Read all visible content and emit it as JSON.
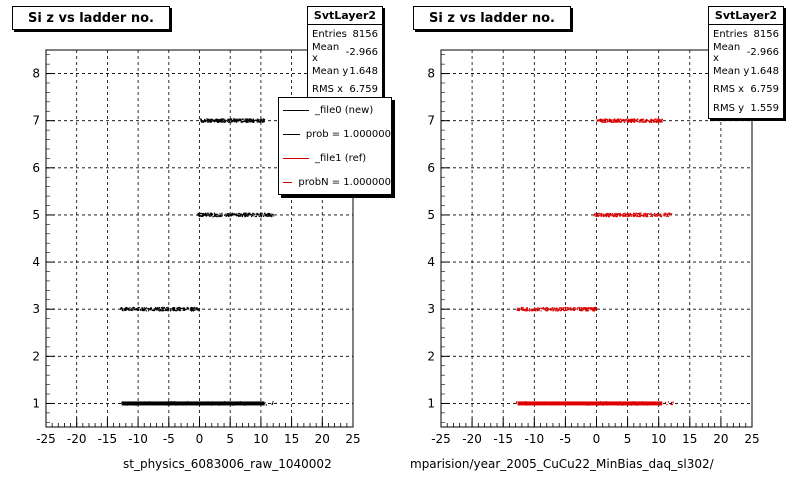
{
  "chart_data": [
    {
      "type": "scatter",
      "title": "Si z vs ladder no.",
      "xlabel": "st_physics_6083006_raw_1040002",
      "ylabel": "",
      "xlim": [
        -25,
        25
      ],
      "ylim": [
        0.5,
        8.5
      ],
      "xticks": [
        -25,
        -20,
        -15,
        -10,
        -5,
        0,
        5,
        10,
        15,
        20,
        25
      ],
      "yticks": [
        1,
        2,
        3,
        4,
        5,
        6,
        7,
        8
      ],
      "grid": true,
      "marker_color": "#000000",
      "series": [
        {
          "ladder": 1,
          "x_range": [
            -13,
            12.5
          ],
          "dense": true
        },
        {
          "ladder": 3,
          "x_range": [
            -13,
            0
          ]
        },
        {
          "ladder": 5,
          "x_range": [
            -0.5,
            12
          ]
        },
        {
          "ladder": 7,
          "x_range": [
            0,
            10.5
          ]
        }
      ],
      "stats": {
        "name": "SvtLayer2",
        "rows": [
          {
            "label": "Entries",
            "value": "8156"
          },
          {
            "label": "Mean x",
            "value": "-2.966"
          },
          {
            "label": "Mean y",
            "value": "1.648"
          },
          {
            "label": "RMS x",
            "value": "6.759"
          }
        ]
      },
      "legend": [
        {
          "label": "_file0 (new)",
          "color": "#000000"
        },
        {
          "label": "prob = 1.000000",
          "color": "#000000"
        },
        {
          "label": "_file1 (ref)",
          "color": "#cc0000"
        },
        {
          "label": "probN = 1.000000",
          "color": "#cc0000"
        }
      ]
    },
    {
      "type": "scatter",
      "title": "Si z vs ladder no.",
      "xlabel": "mparision/year_2005_CuCu22_MinBias_daq_sl302/",
      "ylabel": "",
      "xlim": [
        -25,
        25
      ],
      "ylim": [
        0.5,
        8.5
      ],
      "xticks": [
        -25,
        -20,
        -15,
        -10,
        -5,
        0,
        5,
        10,
        15,
        20,
        25
      ],
      "yticks": [
        1,
        2,
        3,
        4,
        5,
        6,
        7,
        8
      ],
      "grid": true,
      "marker_color": "#dd0000",
      "series": [
        {
          "ladder": 1,
          "x_range": [
            -13,
            12.5
          ],
          "dense": true
        },
        {
          "ladder": 3,
          "x_range": [
            -13,
            0
          ]
        },
        {
          "ladder": 5,
          "x_range": [
            -0.5,
            12
          ]
        },
        {
          "ladder": 7,
          "x_range": [
            0,
            10.5
          ]
        }
      ],
      "stats": {
        "name": "SvtLayer2",
        "rows": [
          {
            "label": "Entries",
            "value": "8156"
          },
          {
            "label": "Mean x",
            "value": "-2.966"
          },
          {
            "label": "Mean y",
            "value": "1.648"
          },
          {
            "label": "RMS x",
            "value": "6.759"
          },
          {
            "label": "RMS y",
            "value": "1.559"
          }
        ]
      }
    }
  ]
}
